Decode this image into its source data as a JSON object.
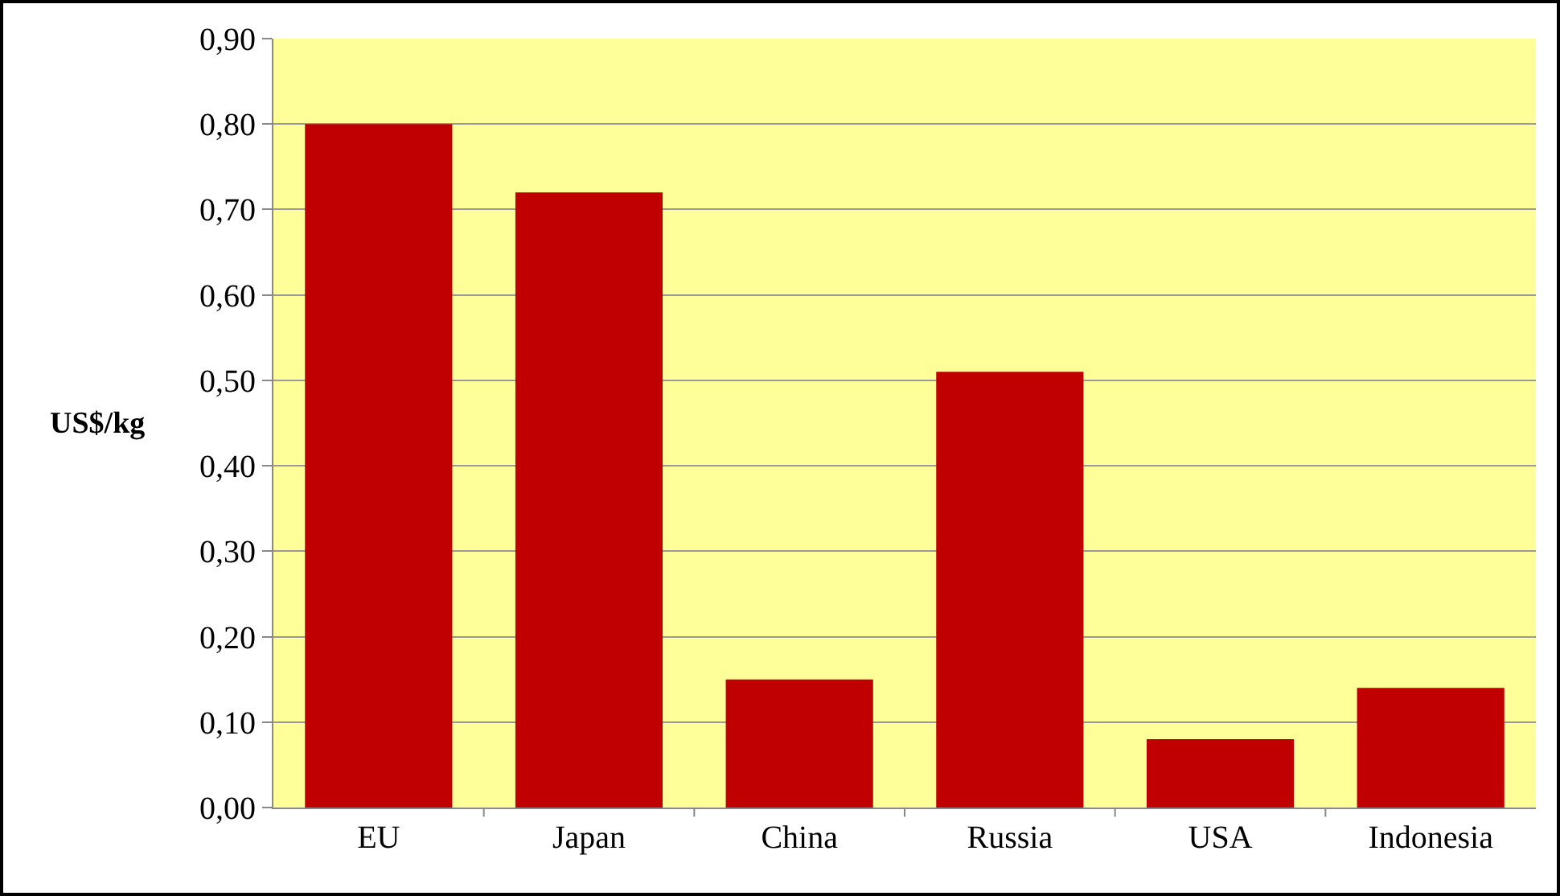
{
  "chart_data": {
    "type": "bar",
    "ylabel": "US$/kg",
    "categories": [
      "EU",
      "Japan",
      "China",
      "Russia",
      "USA",
      "Indonesia"
    ],
    "values": [
      0.8,
      0.72,
      0.15,
      0.51,
      0.08,
      0.14
    ],
    "color": "#c00000",
    "ylim": [
      0,
      0.9
    ],
    "yticks": [
      {
        "value": 0,
        "label": "0,00"
      },
      {
        "value": 0.1,
        "label": "0,10"
      },
      {
        "value": 0.2,
        "label": "0,20"
      },
      {
        "value": 0.3,
        "label": "0,30"
      },
      {
        "value": 0.4,
        "label": "0,40"
      },
      {
        "value": 0.5,
        "label": "0,50"
      },
      {
        "value": 0.6,
        "label": "0,60"
      },
      {
        "value": 0.7,
        "label": "0,70"
      },
      {
        "value": 0.8,
        "label": "0,80"
      },
      {
        "value": 0.9,
        "label": "0,90"
      }
    ],
    "grid": "y"
  }
}
